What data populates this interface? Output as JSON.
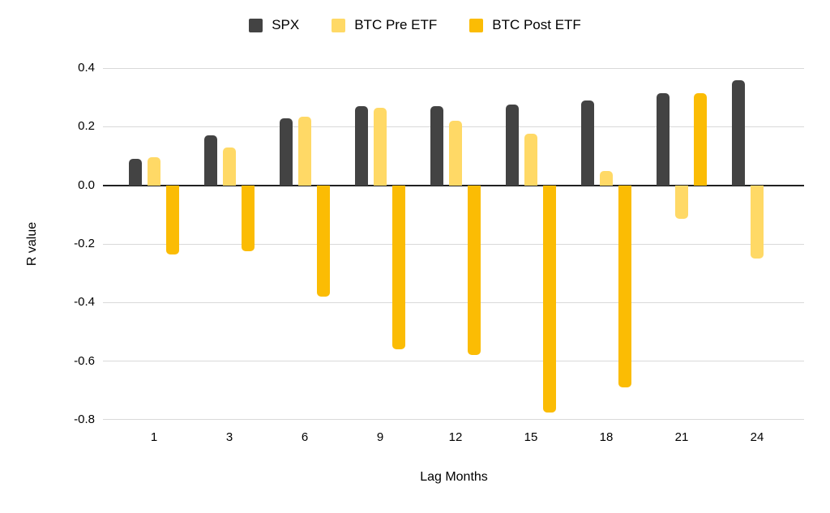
{
  "chart_data": {
    "type": "bar",
    "xlabel": "Lag Months",
    "ylabel": "R value",
    "categories": [
      "1",
      "3",
      "6",
      "9",
      "12",
      "15",
      "18",
      "21",
      "24"
    ],
    "series": [
      {
        "name": "SPX",
        "color": "#434343",
        "values": [
          0.09,
          0.17,
          0.23,
          0.27,
          0.27,
          0.275,
          0.29,
          0.315,
          0.36
        ]
      },
      {
        "name": "BTC Pre ETF",
        "color": "#FFD966",
        "values": [
          0.095,
          0.13,
          0.235,
          0.265,
          0.22,
          0.175,
          0.05,
          -0.115,
          -0.25
        ]
      },
      {
        "name": "BTC Post ETF",
        "color": "#FBBC04",
        "values": [
          -0.235,
          -0.225,
          -0.38,
          -0.56,
          -0.58,
          -0.775,
          -0.69,
          0.315,
          null
        ]
      }
    ],
    "ytick_labels": [
      "0.4",
      "0.2",
      "0.0",
      "-0.2",
      "-0.4",
      "-0.6",
      "-0.8"
    ],
    "yticks": [
      0.4,
      0.2,
      0.0,
      -0.2,
      -0.4,
      -0.6,
      -0.8
    ],
    "ylim": [
      -0.83,
      0.45
    ],
    "grid": true,
    "legend_position": "top",
    "colors": {
      "grid": "#d9d9d9",
      "zero_line": "#212121",
      "background": "#ffffff",
      "text": "#000000"
    }
  }
}
